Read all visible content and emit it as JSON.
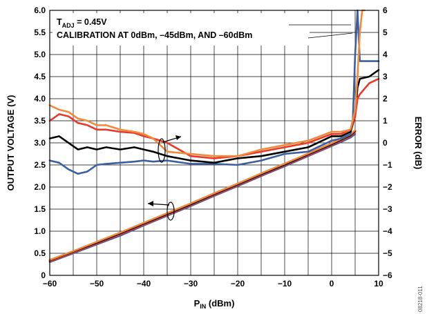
{
  "chart_data": {
    "type": "line",
    "xlabel": "P",
    "xlabel_sub": "IN",
    "xlabel_unit": " (dBm)",
    "ylabel_left": "OUTPUT VOLTAGE (V)",
    "ylabel_right": "ERROR (dB)",
    "xlim": [
      -60,
      10
    ],
    "ylim_left": [
      0,
      6
    ],
    "ylim_right": [
      -6,
      6
    ],
    "x_ticks": [
      -60,
      -50,
      -40,
      -30,
      -20,
      -10,
      0,
      10
    ],
    "x_tick_labels": [
      "−60",
      "−50",
      "−40",
      "−30",
      "−20",
      "−10",
      "0",
      "10"
    ],
    "y_left_ticks": [
      0,
      0.5,
      1.0,
      1.5,
      2.0,
      2.5,
      3.0,
      3.5,
      4.0,
      4.5,
      5.0,
      5.5,
      6.0
    ],
    "y_left_tick_labels": [
      "0",
      "0.5",
      "1.0",
      "1.5",
      "2.0",
      "2.5",
      "3.0",
      "3.5",
      "4.0",
      "4.5",
      "5.0",
      "5.5",
      "6.0"
    ],
    "y_right_ticks": [
      -6,
      -5,
      -4,
      -3,
      -2,
      -1,
      0,
      1,
      2,
      3,
      4,
      5,
      6
    ],
    "y_right_tick_labels": [
      "−6",
      "−5",
      "−4",
      "−3",
      "−2",
      "−1",
      "0",
      "1",
      "2",
      "3",
      "4",
      "5",
      "6"
    ],
    "grid": true,
    "annotation": {
      "line1_main": "T",
      "line1_sub": "ADJ",
      "line1_rest": " = 0.45V",
      "line2": "CALIBRATION AT 0dBm, –45dBm, AND –60dBm"
    },
    "figure_id": "08218-011",
    "output_voltage_series": [
      {
        "color": "#3b5fa0",
        "axis": "left",
        "x": [
          -60,
          -55,
          -50,
          -45,
          -40,
          -35,
          -30,
          -25,
          -20,
          -15,
          -10,
          -5,
          0,
          2,
          4,
          5
        ],
        "y": [
          0.3,
          0.5,
          0.7,
          0.9,
          1.13,
          1.35,
          1.57,
          1.8,
          2.02,
          2.25,
          2.47,
          2.7,
          2.93,
          3.02,
          3.12,
          3.2
        ]
      },
      {
        "color": "#e8392a",
        "axis": "left",
        "x": [
          -60,
          -55,
          -50,
          -45,
          -40,
          -35,
          -30,
          -25,
          -20,
          -15,
          -10,
          -5,
          0,
          2,
          4,
          5
        ],
        "y": [
          0.32,
          0.52,
          0.72,
          0.93,
          1.15,
          1.37,
          1.59,
          1.82,
          2.04,
          2.27,
          2.49,
          2.72,
          2.95,
          3.05,
          3.15,
          3.25
        ]
      },
      {
        "color": "#000000",
        "axis": "left",
        "x": [
          -60,
          -55,
          -50,
          -45,
          -40,
          -35,
          -30,
          -25,
          -20,
          -15,
          -10,
          -5,
          0,
          2,
          4,
          5
        ],
        "y": [
          0.34,
          0.54,
          0.74,
          0.95,
          1.17,
          1.39,
          1.61,
          1.84,
          2.06,
          2.29,
          2.51,
          2.74,
          2.97,
          3.07,
          3.17,
          3.27
        ]
      },
      {
        "color": "#f28a3a",
        "axis": "left",
        "x": [
          -60,
          -55,
          -50,
          -45,
          -40,
          -35,
          -30,
          -25,
          -20,
          -15,
          -10,
          -5,
          0,
          2,
          4,
          5
        ],
        "y": [
          0.35,
          0.55,
          0.76,
          0.97,
          1.19,
          1.41,
          1.63,
          1.86,
          2.08,
          2.31,
          2.53,
          2.76,
          2.99,
          3.09,
          3.19,
          3.29
        ]
      }
    ],
    "error_series": [
      {
        "color": "#3b5fa0",
        "axis": "right",
        "x": [
          -60,
          -58,
          -56,
          -54,
          -52,
          -50,
          -48,
          -45,
          -42,
          -40,
          -38,
          -35,
          -30,
          -25,
          -20,
          -15,
          -10,
          -5,
          0,
          2,
          4,
          4.5,
          5,
          5.5,
          6,
          10
        ],
        "y": [
          -0.8,
          -0.9,
          -1.2,
          -1.4,
          -1.3,
          -1.0,
          -0.95,
          -0.9,
          -0.85,
          -0.8,
          -0.85,
          -0.8,
          -0.95,
          -0.95,
          -1.0,
          -0.8,
          -0.5,
          -0.4,
          0.1,
          0.2,
          0.4,
          1.0,
          4.0,
          6.2,
          3.7,
          3.7
        ]
      },
      {
        "color": "#000000",
        "axis": "right",
        "x": [
          -60,
          -58,
          -56,
          -54,
          -52,
          -50,
          -48,
          -45,
          -42,
          -40,
          -38,
          -35,
          -30,
          -25,
          -20,
          -15,
          -10,
          -5,
          0,
          2,
          4,
          5,
          5.5,
          6,
          8,
          10
        ],
        "y": [
          0.2,
          0.3,
          0.0,
          -0.3,
          -0.2,
          -0.3,
          -0.2,
          -0.3,
          -0.2,
          -0.3,
          -0.4,
          -0.6,
          -0.8,
          -0.9,
          -0.7,
          -0.6,
          -0.4,
          -0.2,
          0.3,
          0.3,
          0.5,
          1.2,
          2.5,
          2.9,
          3.0,
          3.3
        ]
      },
      {
        "color": "#e8392a",
        "axis": "right",
        "x": [
          -60,
          -58,
          -56,
          -54,
          -52,
          -50,
          -48,
          -45,
          -42,
          -40,
          -38,
          -35,
          -30,
          -25,
          -20,
          -15,
          -10,
          -5,
          0,
          2,
          4,
          5,
          5.5,
          6,
          8,
          10
        ],
        "y": [
          1.0,
          1.3,
          1.2,
          0.9,
          0.8,
          0.6,
          0.6,
          0.5,
          0.45,
          0.3,
          0.2,
          0.0,
          -0.6,
          -0.7,
          -0.6,
          -0.4,
          -0.2,
          0.0,
          0.4,
          0.4,
          0.6,
          1.2,
          2.0,
          2.2,
          2.7,
          2.9
        ]
      },
      {
        "color": "#f28a3a",
        "axis": "right",
        "x": [
          -60,
          -58,
          -56,
          -54,
          -52,
          -50,
          -48,
          -45,
          -42,
          -40,
          -38,
          -35,
          -30,
          -25,
          -20,
          -15,
          -10,
          -5,
          0,
          2,
          4,
          5,
          5.5,
          6,
          6.5,
          7
        ],
        "y": [
          1.7,
          1.5,
          1.4,
          1.1,
          1.0,
          0.8,
          0.8,
          0.6,
          0.5,
          0.4,
          0.2,
          -0.4,
          -0.5,
          -0.6,
          -0.6,
          -0.3,
          -0.1,
          0.1,
          0.5,
          0.5,
          0.6,
          1.5,
          3.0,
          5.0,
          6.0,
          6.3
        ]
      }
    ]
  }
}
